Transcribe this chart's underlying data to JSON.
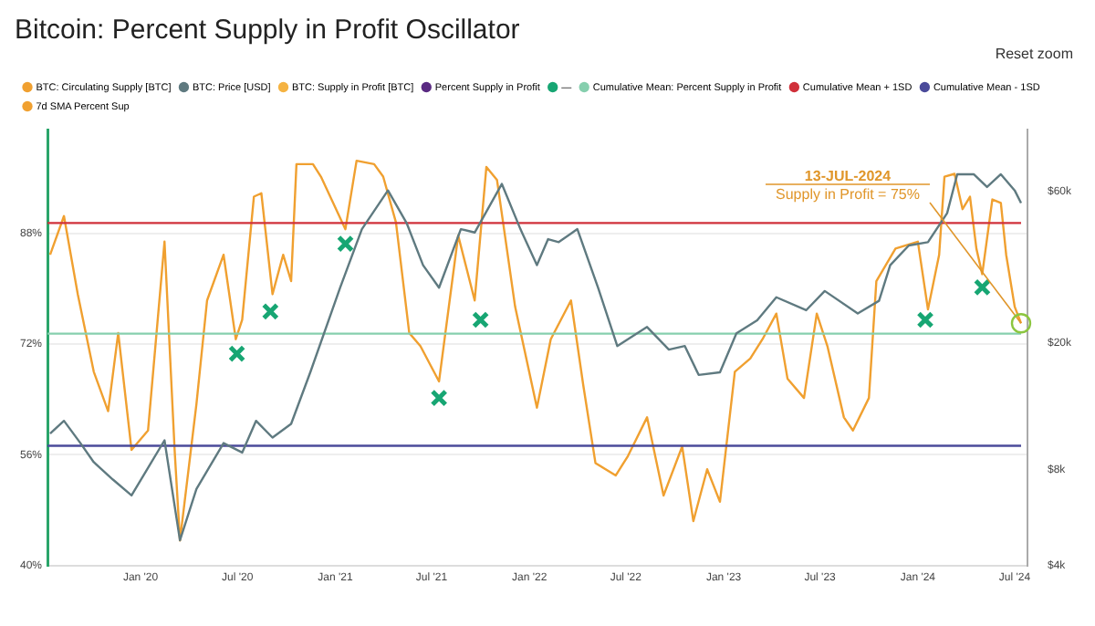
{
  "chart_data": {
    "type": "line",
    "title": "Bitcoin: Percent Supply in Profit Oscillator",
    "xlim": [
      "2019-07-10",
      "2024-07-25"
    ],
    "xticks": [
      {
        "value": "2020-01-01",
        "label": "Jan '20"
      },
      {
        "value": "2020-07-01",
        "label": "Jul '20"
      },
      {
        "value": "2021-01-01",
        "label": "Jan '21"
      },
      {
        "value": "2021-07-01",
        "label": "Jul '21"
      },
      {
        "value": "2022-01-01",
        "label": "Jan '22"
      },
      {
        "value": "2022-07-01",
        "label": "Jul '22"
      },
      {
        "value": "2023-01-01",
        "label": "Jan '23"
      },
      {
        "value": "2023-07-01",
        "label": "Jul '23"
      },
      {
        "value": "2024-01-01",
        "label": "Jan '24"
      },
      {
        "value": "2024-07-01",
        "label": "Jul '24"
      }
    ],
    "ylim": [
      40,
      103
    ],
    "yticks": [
      {
        "value": 40,
        "label": "40%"
      },
      {
        "value": 56,
        "label": "56%"
      },
      {
        "value": 72,
        "label": "72%"
      },
      {
        "value": 88,
        "label": "88%"
      }
    ],
    "y2lim": [
      4000,
      94000
    ],
    "y2ticks": [
      {
        "value": 4000,
        "label": "$4k"
      },
      {
        "value": 8000,
        "label": "$8k"
      },
      {
        "value": 20000,
        "label": "$20k"
      },
      {
        "value": 60000,
        "label": "$60k"
      }
    ],
    "log": "y2",
    "grid": "y",
    "legend": "top",
    "marker": "none",
    "series": [
      {
        "name": "BTC: Circulating Supply [BTC]",
        "color": "#f0a030"
      },
      {
        "name": "BTC: Price [USD]",
        "color": "#5f7a80",
        "axis": "y2",
        "x": [
          "2019-07-15",
          "2019-08-10",
          "2019-09-10",
          "2019-10-05",
          "2019-11-10",
          "2019-12-15",
          "2020-02-15",
          "2020-03-15",
          "2020-04-15",
          "2020-06-05",
          "2020-07-10",
          "2020-08-05",
          "2020-09-05",
          "2020-10-10",
          "2020-11-15",
          "2021-01-10",
          "2021-02-20",
          "2021-04-10",
          "2021-05-15",
          "2021-06-15",
          "2021-07-15",
          "2021-08-25",
          "2021-09-20",
          "2021-11-10",
          "2021-12-15",
          "2022-01-15",
          "2022-02-05",
          "2022-02-25",
          "2022-04-01",
          "2022-05-10",
          "2022-06-15",
          "2022-08-10",
          "2022-09-20",
          "2022-10-20",
          "2022-11-15",
          "2022-12-25",
          "2023-01-25",
          "2023-03-05",
          "2023-04-10",
          "2023-06-05",
          "2023-07-10",
          "2023-09-10",
          "2023-10-20",
          "2023-11-10",
          "2023-12-15",
          "2024-01-20",
          "2024-02-25",
          "2024-03-15",
          "2024-04-15",
          "2024-05-10",
          "2024-06-05",
          "2024-07-01",
          "2024-07-13"
        ],
        "values": [
          10400,
          11400,
          9700,
          8450,
          7450,
          6640,
          9900,
          4800,
          6960,
          9700,
          9060,
          11400,
          10100,
          11150,
          16200,
          29900,
          45700,
          60500,
          47800,
          35200,
          29900,
          45700,
          44600,
          63400,
          45700,
          35200,
          42500,
          41600,
          45700,
          29900,
          19600,
          22500,
          19100,
          19600,
          15900,
          16200,
          21500,
          23600,
          27900,
          25400,
          29200,
          24800,
          27200,
          35200,
          40600,
          41600,
          51300,
          68000,
          68000,
          62000,
          68000,
          60500,
          55200
        ]
      },
      {
        "name": "BTC: Supply in Profit [BTC]",
        "color": "#f5b342"
      },
      {
        "name": "Percent Supply in Profit",
        "color": "#5a2a82"
      },
      {
        "name": "—",
        "color": "#17a673",
        "type": "scatter",
        "marker": "cross",
        "x": [
          "2020-06-30",
          "2020-09-01",
          "2021-01-20",
          "2021-07-15",
          "2021-10-01",
          "2024-01-15",
          "2024-05-01"
        ],
        "values": [
          70.6,
          76.7,
          86.5,
          64.2,
          75.5,
          75.5,
          80.2
        ]
      },
      {
        "name": "Cumulative Mean: Percent Supply in Profit",
        "color": "#86cfae",
        "x": [
          "2019-07-10",
          "2024-07-13"
        ],
        "values": [
          73.5,
          73.5
        ]
      },
      {
        "name": "Cumulative Mean + 1SD",
        "color": "#d0303a",
        "x": [
          "2019-07-10",
          "2024-07-13"
        ],
        "values": [
          89.5,
          89.5
        ]
      },
      {
        "name": "Cumulative Mean - 1SD",
        "color": "#4a4a9a",
        "x": [
          "2019-07-10",
          "2024-07-13"
        ],
        "values": [
          57.3,
          57.3
        ]
      },
      {
        "name": "7d SMA Percent Sup",
        "color": "#f0a030",
        "x": [
          "2019-07-15",
          "2019-08-10",
          "2019-09-05",
          "2019-10-05",
          "2019-11-01",
          "2019-11-20",
          "2019-12-15",
          "2020-01-15",
          "2020-02-15",
          "2020-03-05",
          "2020-03-15",
          "2020-04-15",
          "2020-05-05",
          "2020-06-05",
          "2020-06-28",
          "2020-07-10",
          "2020-08-01",
          "2020-08-15",
          "2020-09-05",
          "2020-09-25",
          "2020-10-10",
          "2020-10-20",
          "2020-11-20",
          "2020-12-05",
          "2021-01-20",
          "2021-02-10",
          "2021-03-15",
          "2021-04-01",
          "2021-04-25",
          "2021-05-20",
          "2021-06-10",
          "2021-07-15",
          "2021-08-20",
          "2021-09-20",
          "2021-10-12",
          "2021-11-01",
          "2021-12-05",
          "2022-01-15",
          "2022-02-10",
          "2022-03-20",
          "2022-04-12",
          "2022-05-05",
          "2022-06-12",
          "2022-07-05",
          "2022-08-10",
          "2022-09-10",
          "2022-10-15",
          "2022-11-05",
          "2022-12-01",
          "2022-12-25",
          "2023-01-22",
          "2023-02-20",
          "2023-03-15",
          "2023-04-10",
          "2023-05-01",
          "2023-06-01",
          "2023-06-25",
          "2023-07-15",
          "2023-08-15",
          "2023-09-01",
          "2023-10-01",
          "2023-10-15",
          "2023-11-20",
          "2024-01-01",
          "2024-01-20",
          "2024-02-10",
          "2024-02-20",
          "2024-03-10",
          "2024-03-25",
          "2024-04-08",
          "2024-04-20",
          "2024-05-01",
          "2024-05-20",
          "2024-06-05",
          "2024-06-15",
          "2024-07-01",
          "2024-07-13"
        ],
        "values": [
          84.9,
          90.5,
          79.2,
          68,
          62.3,
          73.6,
          56.7,
          59.5,
          86.8,
          56.7,
          43.6,
          63.3,
          78.3,
          84.9,
          72.7,
          75.5,
          93.3,
          93.8,
          79.2,
          84.9,
          81.1,
          98,
          98,
          96.2,
          88.6,
          98.5,
          98,
          96.2,
          89.6,
          73.6,
          71.7,
          66.6,
          87.7,
          78.3,
          97.6,
          95.7,
          77.4,
          62.8,
          72.7,
          78.3,
          66.1,
          54.8,
          53,
          55.8,
          61.4,
          50.1,
          57.2,
          46.4,
          53.9,
          49.2,
          68,
          69.9,
          72.7,
          76.4,
          67,
          64.2,
          76.4,
          71.7,
          61.4,
          59.5,
          64.2,
          81.1,
          85.8,
          86.8,
          77,
          84.9,
          96.2,
          96.6,
          91.5,
          93.3,
          85.8,
          82.1,
          92.9,
          92.4,
          84.9,
          77.4,
          75
        ]
      }
    ],
    "annotations": [
      {
        "text": "13-JUL-2024\nSupply in Profit = 75%",
        "x": "2024-07-13",
        "y": 75
      },
      "Reset zoom"
    ]
  }
}
